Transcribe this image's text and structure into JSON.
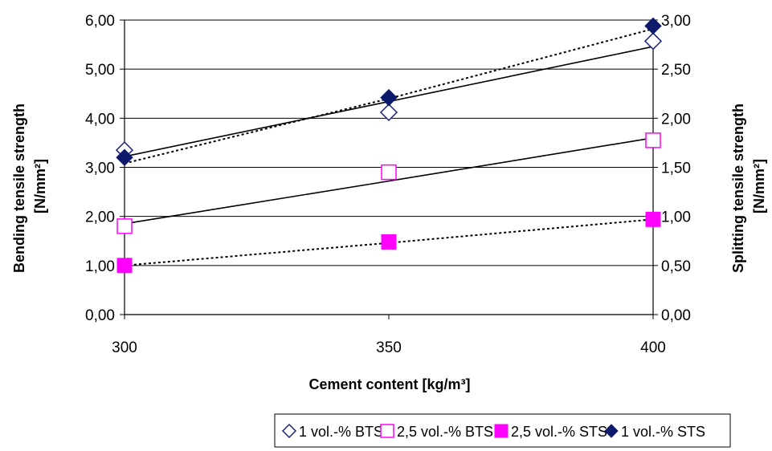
{
  "chart_data": {
    "type": "scatter",
    "title": "",
    "xlabel": "Cement content [kg/m³]",
    "ylabel_left": [
      "Bending tensile strength",
      "[N/mm²]"
    ],
    "ylabel_right": [
      "Splitting tensile strength",
      "[N/mm²]"
    ],
    "x": [
      300,
      350,
      400
    ],
    "x_ticks": [
      "300",
      "350",
      "400"
    ],
    "xlim": [
      300,
      400
    ],
    "ylim_left": [
      0,
      6
    ],
    "ylim_right": [
      0,
      3
    ],
    "y_ticks_left": [
      "0,00",
      "1,00",
      "2,00",
      "3,00",
      "4,00",
      "5,00",
      "6,00"
    ],
    "y_ticks_right": [
      "0,00",
      "0,50",
      "1,00",
      "1,50",
      "2,00",
      "2,50",
      "3,00"
    ],
    "grid": "horizontal",
    "legend_position": "bottom",
    "series": [
      {
        "name": "1 vol.-% BTS",
        "axis": "left",
        "marker": "diamond-open",
        "color": "#1a237e",
        "values": [
          3.35,
          4.12,
          5.57
        ],
        "trendline": "solid",
        "trend": [
          3.22,
          4.34,
          5.46
        ]
      },
      {
        "name": "2,5 vol.-% BTS",
        "axis": "left",
        "marker": "square-open",
        "color": "#ff00ff",
        "values": [
          1.8,
          2.9,
          3.55
        ],
        "trendline": "solid",
        "trend": [
          1.85,
          2.72,
          3.6
        ]
      },
      {
        "name": "2,5 vol.-% STS",
        "axis": "right",
        "marker": "square-filled",
        "color": "#ff00ff",
        "values": [
          0.5,
          0.74,
          0.97
        ],
        "trendline": "dotted",
        "trend": [
          0.5,
          0.73,
          0.97
        ]
      },
      {
        "name": "1 vol.-% STS",
        "axis": "right",
        "marker": "diamond-filled",
        "color": "#0d1a6b",
        "values": [
          1.6,
          2.21,
          2.94
        ],
        "trendline": "dotted",
        "trend": [
          1.54,
          2.2,
          2.91
        ]
      }
    ]
  }
}
